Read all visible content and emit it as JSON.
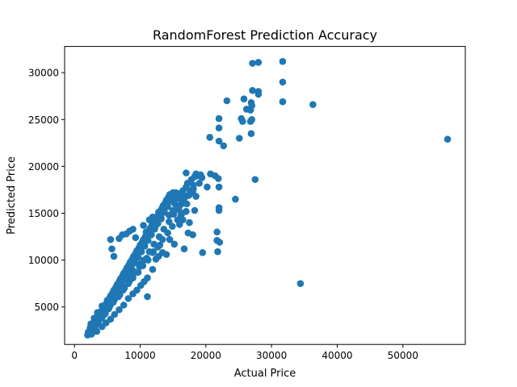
{
  "chart_data": {
    "type": "scatter",
    "title": "RandomForest Prediction Accuracy",
    "xlabel": "Actual Price",
    "ylabel": "Predicted Price",
    "xlim": [
      -1500,
      59500
    ],
    "ylim": [
      1000,
      32800
    ],
    "xticks": [
      0,
      10000,
      20000,
      30000,
      40000,
      50000
    ],
    "yticks": [
      5000,
      10000,
      15000,
      20000,
      25000,
      30000
    ],
    "grid": false,
    "legend": "none",
    "color": "#1f77b4",
    "series": [
      {
        "points": [
          [
            2000,
            2000
          ],
          [
            2100,
            2200
          ],
          [
            2300,
            2500
          ],
          [
            2400,
            2800
          ],
          [
            2600,
            2400
          ],
          [
            2800,
            3100
          ],
          [
            3000,
            3400
          ],
          [
            3200,
            3000
          ],
          [
            3300,
            3700
          ],
          [
            3500,
            4000
          ],
          [
            3700,
            3500
          ],
          [
            3800,
            4200
          ],
          [
            4000,
            4500
          ],
          [
            4200,
            3900
          ],
          [
            4300,
            4800
          ],
          [
            4500,
            5000
          ],
          [
            4700,
            4300
          ],
          [
            4800,
            5300
          ],
          [
            5000,
            5600
          ],
          [
            5200,
            4900
          ],
          [
            5300,
            5900
          ],
          [
            5500,
            6200
          ],
          [
            5700,
            5500
          ],
          [
            5800,
            6500
          ],
          [
            6000,
            6800
          ],
          [
            6200,
            6100
          ],
          [
            6300,
            7100
          ],
          [
            6500,
            7400
          ],
          [
            6700,
            6700
          ],
          [
            6800,
            7700
          ],
          [
            7000,
            8000
          ],
          [
            7200,
            7300
          ],
          [
            7300,
            8300
          ],
          [
            7500,
            8600
          ],
          [
            7700,
            7900
          ],
          [
            7800,
            8900
          ],
          [
            8000,
            9200
          ],
          [
            8200,
            8500
          ],
          [
            8300,
            9500
          ],
          [
            8500,
            9800
          ],
          [
            8700,
            9100
          ],
          [
            8800,
            10100
          ],
          [
            9000,
            10400
          ],
          [
            9200,
            9700
          ],
          [
            9300,
            10700
          ],
          [
            9500,
            11000
          ],
          [
            9700,
            10300
          ],
          [
            9800,
            11300
          ],
          [
            10000,
            11600
          ],
          [
            10200,
            10900
          ],
          [
            10300,
            11900
          ],
          [
            10500,
            12200
          ],
          [
            10700,
            11500
          ],
          [
            10800,
            12500
          ],
          [
            11000,
            12800
          ],
          [
            11200,
            12100
          ],
          [
            11300,
            13100
          ],
          [
            11500,
            13400
          ],
          [
            11700,
            12700
          ],
          [
            11800,
            13700
          ],
          [
            12000,
            14000
          ],
          [
            12200,
            13300
          ],
          [
            12300,
            14300
          ],
          [
            12500,
            14600
          ],
          [
            12700,
            13900
          ],
          [
            12800,
            14900
          ],
          [
            13000,
            15200
          ],
          [
            13200,
            14500
          ],
          [
            13300,
            15500
          ],
          [
            13500,
            15800
          ],
          [
            13700,
            15100
          ],
          [
            13800,
            16100
          ],
          [
            14000,
            16400
          ],
          [
            14200,
            15700
          ],
          [
            14300,
            16700
          ],
          [
            14500,
            17000
          ],
          [
            14700,
            16300
          ],
          [
            14800,
            16900
          ],
          [
            15000,
            17200
          ],
          [
            15200,
            16600
          ],
          [
            15300,
            16000
          ],
          [
            15500,
            17000
          ],
          [
            15700,
            15400
          ],
          [
            15800,
            16600
          ],
          [
            16000,
            17100
          ],
          [
            16300,
            16000
          ],
          [
            16500,
            17400
          ],
          [
            16800,
            16700
          ],
          [
            17000,
            17800
          ],
          [
            17200,
            18200
          ],
          [
            17500,
            17000
          ],
          [
            17800,
            18600
          ],
          [
            18000,
            17300
          ],
          [
            18300,
            18900
          ],
          [
            18500,
            16800
          ],
          [
            18800,
            19000
          ],
          [
            19000,
            18200
          ],
          [
            19200,
            19100
          ],
          [
            16000,
            13800
          ],
          [
            16500,
            14300
          ],
          [
            17000,
            15200
          ],
          [
            17500,
            14000
          ],
          [
            18000,
            12700
          ],
          [
            18300,
            15300
          ],
          [
            14500,
            12200
          ],
          [
            13000,
            11600
          ],
          [
            12000,
            10900
          ],
          [
            11000,
            10200
          ],
          [
            10000,
            9600
          ],
          [
            9000,
            8800
          ],
          [
            8000,
            8100
          ],
          [
            7000,
            7300
          ],
          [
            6000,
            6500
          ],
          [
            5000,
            5700
          ],
          [
            4200,
            5100
          ],
          [
            3500,
            4400
          ],
          [
            3000,
            3800
          ],
          [
            2500,
            3200
          ],
          [
            2800,
            2600
          ],
          [
            3400,
            3300
          ],
          [
            4100,
            3800
          ],
          [
            4600,
            4600
          ],
          [
            5400,
            5100
          ],
          [
            6100,
            5800
          ],
          [
            6900,
            6300
          ],
          [
            7600,
            7000
          ],
          [
            8400,
            7800
          ],
          [
            9100,
            8600
          ],
          [
            9900,
            9300
          ],
          [
            10600,
            10000
          ],
          [
            11400,
            10900
          ],
          [
            12100,
            11700
          ],
          [
            12900,
            12500
          ],
          [
            13600,
            13300
          ],
          [
            14400,
            14100
          ],
          [
            15100,
            14900
          ],
          [
            15900,
            15600
          ],
          [
            16600,
            16200
          ],
          [
            17400,
            16900
          ],
          [
            18100,
            17600
          ],
          [
            5500,
            12200
          ],
          [
            5700,
            11200
          ],
          [
            6000,
            10400
          ],
          [
            6800,
            12300
          ],
          [
            7300,
            12700
          ],
          [
            7900,
            12800
          ],
          [
            8400,
            13100
          ],
          [
            8900,
            13300
          ],
          [
            9300,
            12400
          ],
          [
            10500,
            13700
          ],
          [
            10900,
            13000
          ],
          [
            11400,
            14300
          ],
          [
            11900,
            14600
          ],
          [
            12300,
            13600
          ],
          [
            12800,
            15100
          ],
          [
            13200,
            14400
          ],
          [
            14400,
            14800
          ],
          [
            15000,
            15300
          ],
          [
            15400,
            17200
          ],
          [
            15800,
            16800
          ],
          [
            16200,
            14800
          ],
          [
            16700,
            16900
          ],
          [
            17100,
            16000
          ],
          [
            17600,
            17400
          ],
          [
            18100,
            18000
          ],
          [
            18500,
            19200
          ],
          [
            17000,
            19300
          ],
          [
            19100,
            19000
          ],
          [
            19400,
            18800
          ],
          [
            20200,
            17800
          ],
          [
            20700,
            19200
          ],
          [
            21400,
            19000
          ],
          [
            21900,
            18700
          ],
          [
            22000,
            17800
          ],
          [
            22000,
            15600
          ],
          [
            22000,
            15300
          ],
          [
            21700,
            13000
          ],
          [
            21700,
            12100
          ],
          [
            21800,
            10900
          ],
          [
            22100,
            11900
          ],
          [
            19500,
            10800
          ],
          [
            17300,
            12900
          ],
          [
            16700,
            11200
          ],
          [
            15200,
            11700
          ],
          [
            14000,
            10600
          ],
          [
            13400,
            10800
          ],
          [
            12800,
            10400
          ],
          [
            12400,
            10100
          ],
          [
            11900,
            9000
          ],
          [
            11100,
            8100
          ],
          [
            10600,
            7700
          ],
          [
            11100,
            6100
          ],
          [
            10100,
            7300
          ],
          [
            9500,
            6800
          ],
          [
            8900,
            6400
          ],
          [
            8200,
            5900
          ],
          [
            7500,
            5200
          ],
          [
            6800,
            4700
          ],
          [
            6100,
            4200
          ],
          [
            5500,
            3700
          ],
          [
            4800,
            3300
          ],
          [
            4200,
            2900
          ],
          [
            3400,
            2400
          ],
          [
            2600,
            2100
          ],
          [
            2100,
            2300
          ],
          [
            2900,
            2800
          ],
          [
            3600,
            3500
          ],
          [
            4400,
            4100
          ],
          [
            5200,
            4800
          ],
          [
            5900,
            5500
          ],
          [
            6700,
            6100
          ],
          [
            7400,
            6800
          ],
          [
            8200,
            7500
          ],
          [
            8900,
            8100
          ],
          [
            9700,
            8700
          ],
          [
            10400,
            9400
          ],
          [
            11200,
            10000
          ],
          [
            11900,
            10800
          ],
          [
            12700,
            11400
          ],
          [
            13400,
            12200
          ],
          [
            14200,
            12900
          ],
          [
            14900,
            13600
          ],
          [
            15700,
            14300
          ],
          [
            16400,
            15000
          ],
          [
            20600,
            23100
          ],
          [
            22000,
            22700
          ],
          [
            22000,
            24100
          ],
          [
            22000,
            25100
          ],
          [
            22700,
            22200
          ],
          [
            23200,
            27000
          ],
          [
            25100,
            23000
          ],
          [
            25400,
            25100
          ],
          [
            25600,
            24800
          ],
          [
            25800,
            27200
          ],
          [
            26200,
            26100
          ],
          [
            26800,
            24800
          ],
          [
            26800,
            26000
          ],
          [
            26900,
            26800
          ],
          [
            26900,
            23500
          ],
          [
            27000,
            25000
          ],
          [
            27000,
            26500
          ],
          [
            27100,
            28100
          ],
          [
            27100,
            31000
          ],
          [
            27500,
            18600
          ],
          [
            28000,
            31100
          ],
          [
            28000,
            28000
          ],
          [
            28000,
            27700
          ],
          [
            24500,
            16500
          ],
          [
            31700,
            31200
          ],
          [
            31700,
            29000
          ],
          [
            31700,
            26900
          ],
          [
            36300,
            26600
          ],
          [
            34400,
            7500
          ],
          [
            56800,
            22900
          ]
        ]
      }
    ]
  }
}
